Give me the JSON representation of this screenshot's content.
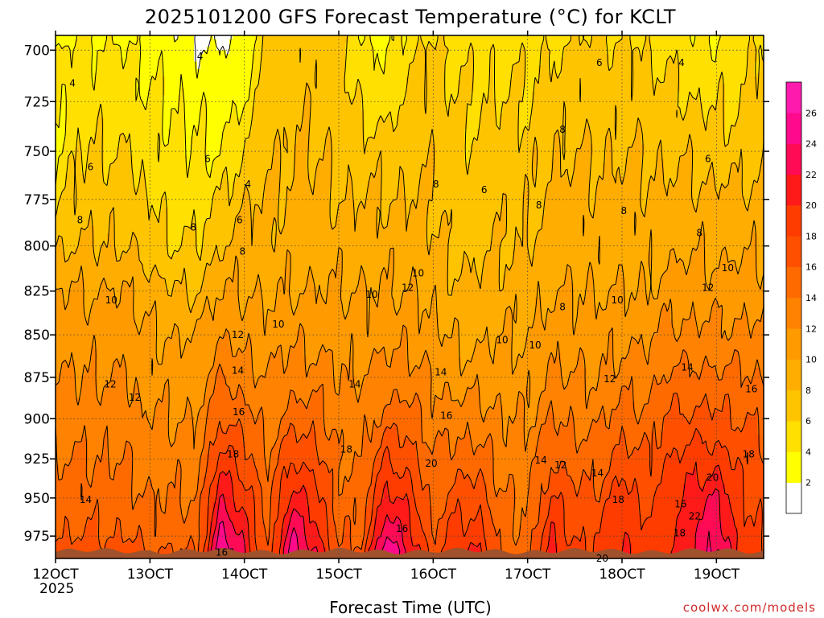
{
  "chart_data": {
    "type": "heatmap",
    "title": "2025101200 GFS Forecast Temperature (°C) for KCLT",
    "xlabel": "Forecast Time (UTC)",
    "ylabel": "",
    "credit": "coolwx.com/models",
    "year_label": "2025",
    "x_ticks": [
      "12OCT",
      "13OCT",
      "14OCT",
      "15OCT",
      "16OCT",
      "17OCT",
      "18OCT",
      "19OCT"
    ],
    "x_tick_days": [
      12,
      13,
      14,
      15,
      16,
      17,
      18,
      19
    ],
    "x_range": [
      12,
      19.5
    ],
    "y_ticks": [
      700,
      725,
      750,
      775,
      800,
      825,
      850,
      875,
      900,
      925,
      950,
      975
    ],
    "y_range": [
      693,
      990
    ],
    "y_scale": "log-pressure",
    "surface_pressure_hpa": 985,
    "grid": true,
    "colorbar": {
      "levels": [
        2,
        4,
        6,
        8,
        10,
        12,
        14,
        16,
        18,
        20,
        22,
        24,
        26
      ],
      "colors": [
        "#ffffff",
        "#ffff00",
        "#ffe000",
        "#ffc400",
        "#ffad00",
        "#ff9a00",
        "#ff8200",
        "#ff6a00",
        "#ff5000",
        "#ff3c00",
        "#ff1a1a",
        "#ff0a55",
        "#ff0a8c",
        "#ff1aae"
      ]
    },
    "contour_levels": [
      2,
      4,
      6,
      8,
      10,
      12,
      14,
      16,
      18,
      20,
      22,
      24,
      26
    ],
    "temperature_grid": {
      "x_days": [
        12.0,
        12.25,
        12.5,
        12.75,
        13.0,
        13.25,
        13.5,
        13.75,
        14.0,
        14.25,
        14.5,
        14.75,
        15.0,
        15.25,
        15.5,
        15.75,
        16.0,
        16.25,
        16.5,
        16.75,
        17.0,
        17.25,
        17.5,
        17.75,
        18.0,
        18.25,
        18.5,
        18.75,
        19.0,
        19.25,
        19.5
      ],
      "pressure_hpa": [
        695,
        700,
        725,
        750,
        775,
        800,
        825,
        850,
        875,
        900,
        925,
        950,
        975,
        985
      ],
      "values_c": [
        [
          3,
          4,
          4,
          4,
          5,
          8,
          10,
          11,
          12,
          13,
          14,
          15,
          16,
          16.5
        ],
        [
          4,
          4.5,
          5,
          6,
          7,
          8,
          10,
          11,
          12,
          13,
          14,
          15,
          16,
          17
        ],
        [
          4,
          4.5,
          5,
          6,
          7,
          8,
          10,
          11,
          12,
          13,
          14,
          15,
          16,
          17
        ],
        [
          3.5,
          4,
          5,
          6,
          7,
          8,
          10,
          11,
          12,
          13,
          14,
          15,
          16,
          17
        ],
        [
          3,
          3.5,
          4,
          5,
          6,
          7,
          9,
          10,
          11,
          12,
          13,
          14,
          15,
          16
        ],
        [
          2.5,
          3,
          4,
          4.5,
          5,
          6,
          8,
          10,
          11,
          12,
          13,
          14,
          15,
          16
        ],
        [
          2,
          2.5,
          3.5,
          4,
          5,
          6,
          8,
          10,
          11,
          12,
          13,
          14,
          15,
          16
        ],
        [
          1.5,
          2,
          3,
          4,
          6,
          8,
          10,
          12,
          14,
          16,
          19,
          22,
          25,
          26
        ],
        [
          2.5,
          3,
          4,
          6,
          8,
          9,
          10,
          11,
          13,
          15,
          17,
          19,
          21,
          22
        ],
        [
          6.5,
          6.5,
          7,
          7.5,
          8,
          8.5,
          9.5,
          11,
          12,
          13,
          14,
          15,
          15.5,
          16
        ],
        [
          7,
          7,
          7.5,
          8,
          8.5,
          9,
          10,
          11.5,
          13,
          15,
          18,
          21,
          24,
          25
        ],
        [
          7,
          7,
          7.5,
          8,
          8.5,
          9,
          10,
          11.5,
          13,
          15,
          17,
          19,
          21,
          22
        ],
        [
          6.5,
          6.5,
          7,
          7.5,
          8,
          9,
          10,
          11,
          12,
          13,
          14,
          15,
          15.5,
          16
        ],
        [
          4,
          4.5,
          5.5,
          7,
          8,
          9,
          10,
          11,
          12,
          13,
          14,
          15,
          16,
          17
        ],
        [
          3,
          3.5,
          5,
          7,
          8,
          9,
          10,
          11,
          13,
          15,
          18,
          21,
          24,
          26
        ],
        [
          5,
          5.5,
          6.5,
          7.5,
          8,
          9,
          10,
          11.5,
          13,
          15,
          17,
          19,
          21,
          22
        ],
        [
          6,
          6.5,
          7,
          7.5,
          8,
          8.5,
          9.5,
          10.5,
          12,
          13,
          14,
          15,
          16,
          16.5
        ],
        [
          5,
          5.5,
          6,
          6.5,
          7,
          7.5,
          8.5,
          9.5,
          11,
          13,
          15,
          17,
          19,
          20
        ],
        [
          5,
          5.5,
          6,
          6.5,
          7,
          7.5,
          8.5,
          9.5,
          11,
          13,
          15,
          17,
          19,
          20
        ],
        [
          5,
          5.5,
          6,
          7,
          7.5,
          8,
          9,
          10,
          11,
          12,
          13,
          14,
          14.5,
          15
        ],
        [
          5,
          5.5,
          6,
          7,
          7.5,
          8,
          9,
          10,
          11,
          12,
          13,
          14,
          14.5,
          15
        ],
        [
          5.5,
          6,
          7,
          8,
          8.5,
          9,
          10,
          11,
          12.5,
          14,
          16,
          18,
          20,
          21
        ],
        [
          6,
          6.5,
          7,
          8,
          8.5,
          9,
          10,
          11,
          12,
          13.5,
          15,
          16.5,
          17.5,
          18
        ],
        [
          6,
          6.5,
          7,
          8,
          8.5,
          9,
          10,
          11,
          12,
          13.5,
          15,
          16.5,
          18,
          18
        ],
        [
          6,
          6.5,
          7,
          8,
          8.5,
          9,
          10,
          11.5,
          13,
          15,
          17,
          19,
          20,
          20
        ],
        [
          5.5,
          6,
          7,
          8,
          8.5,
          9,
          10,
          11.5,
          13,
          14.5,
          16,
          17.5,
          18.5,
          19
        ],
        [
          5,
          5.5,
          6.5,
          7.5,
          8.5,
          9.5,
          11,
          12.5,
          14.5,
          16.5,
          18,
          19,
          19.5,
          20
        ],
        [
          4,
          4.5,
          6,
          7.5,
          8.5,
          9.5,
          11,
          12.5,
          14.5,
          16.5,
          19,
          21,
          22,
          22
        ],
        [
          4,
          4.5,
          5.5,
          7,
          8.5,
          9.5,
          11,
          12.5,
          14.5,
          16.5,
          19,
          22,
          24,
          25
        ],
        [
          5,
          5.5,
          6,
          7,
          8.5,
          9.5,
          11,
          12.5,
          14.5,
          16,
          17.5,
          18.5,
          19,
          19
        ],
        [
          6,
          6.5,
          7,
          7.5,
          8.5,
          9.5,
          11,
          12.5,
          14,
          15.5,
          16.5,
          17,
          17.5,
          18
        ]
      ]
    },
    "contour_labels": [
      {
        "text": "4",
        "day": 13.53,
        "p": 703
      },
      {
        "text": "4",
        "day": 12.18,
        "p": 716
      },
      {
        "text": "6",
        "day": 12.37,
        "p": 758
      },
      {
        "text": "6",
        "day": 13.61,
        "p": 754
      },
      {
        "text": "4",
        "day": 14.04,
        "p": 767
      },
      {
        "text": "8",
        "day": 12.26,
        "p": 786
      },
      {
        "text": "8",
        "day": 13.46,
        "p": 790
      },
      {
        "text": "6",
        "day": 13.95,
        "p": 786
      },
      {
        "text": "8",
        "day": 13.98,
        "p": 803
      },
      {
        "text": "10",
        "day": 12.59,
        "p": 830
      },
      {
        "text": "10",
        "day": 14.36,
        "p": 844
      },
      {
        "text": "10",
        "day": 15.35,
        "p": 827
      },
      {
        "text": "12",
        "day": 15.73,
        "p": 823
      },
      {
        "text": "10",
        "day": 15.84,
        "p": 815
      },
      {
        "text": "8",
        "day": 16.03,
        "p": 767
      },
      {
        "text": "6",
        "day": 16.54,
        "p": 770
      },
      {
        "text": "8",
        "day": 17.37,
        "p": 739
      },
      {
        "text": "8",
        "day": 17.12,
        "p": 778
      },
      {
        "text": "6",
        "day": 17.76,
        "p": 706
      },
      {
        "text": "4",
        "day": 18.63,
        "p": 706
      },
      {
        "text": "6",
        "day": 18.91,
        "p": 754
      },
      {
        "text": "8",
        "day": 18.02,
        "p": 781
      },
      {
        "text": "8",
        "day": 18.82,
        "p": 793
      },
      {
        "text": "10",
        "day": 19.12,
        "p": 812
      },
      {
        "text": "12",
        "day": 18.91,
        "p": 823
      },
      {
        "text": "10",
        "day": 17.95,
        "p": 830
      },
      {
        "text": "8",
        "day": 17.37,
        "p": 834
      },
      {
        "text": "10",
        "day": 16.73,
        "p": 853
      },
      {
        "text": "10",
        "day": 17.08,
        "p": 856
      },
      {
        "text": "12",
        "day": 13.93,
        "p": 850
      },
      {
        "text": "14",
        "day": 13.93,
        "p": 871
      },
      {
        "text": "12",
        "day": 12.58,
        "p": 879
      },
      {
        "text": "12",
        "day": 12.84,
        "p": 887
      },
      {
        "text": "14",
        "day": 15.17,
        "p": 879
      },
      {
        "text": "14",
        "day": 16.08,
        "p": 872
      },
      {
        "text": "16",
        "day": 13.94,
        "p": 896
      },
      {
        "text": "16",
        "day": 16.14,
        "p": 898
      },
      {
        "text": "18",
        "day": 13.88,
        "p": 922
      },
      {
        "text": "18",
        "day": 15.08,
        "p": 919
      },
      {
        "text": "20",
        "day": 15.98,
        "p": 928
      },
      {
        "text": "14",
        "day": 17.14,
        "p": 926
      },
      {
        "text": "12",
        "day": 17.35,
        "p": 929
      },
      {
        "text": "14",
        "day": 17.74,
        "p": 934
      },
      {
        "text": "12",
        "day": 17.87,
        "p": 876
      },
      {
        "text": "14",
        "day": 18.69,
        "p": 869
      },
      {
        "text": "16",
        "day": 19.37,
        "p": 882
      },
      {
        "text": "18",
        "day": 19.34,
        "p": 922
      },
      {
        "text": "20",
        "day": 18.96,
        "p": 937
      },
      {
        "text": "18",
        "day": 17.96,
        "p": 951
      },
      {
        "text": "16",
        "day": 18.62,
        "p": 954
      },
      {
        "text": "22",
        "day": 18.77,
        "p": 962
      },
      {
        "text": "18",
        "day": 18.61,
        "p": 973
      },
      {
        "text": "16",
        "day": 15.67,
        "p": 970
      },
      {
        "text": "20",
        "day": 17.79,
        "p": 990
      },
      {
        "text": "14",
        "day": 12.32,
        "p": 951
      },
      {
        "text": "16",
        "day": 13.76,
        "p": 986
      }
    ]
  }
}
